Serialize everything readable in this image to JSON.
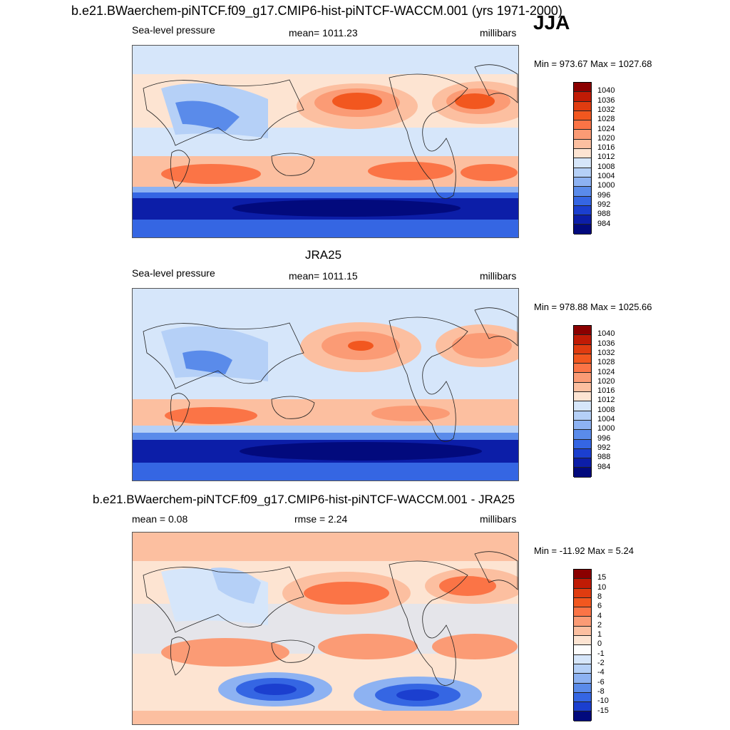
{
  "main_title": "b.e21.BWaerchem-piNTCF.f09_g17.CMIP6-hist-piNTCF-WACCM.001 (yrs 1971-2000)",
  "season": "JJA",
  "panels": [
    {
      "id": "model",
      "left_label": "Sea-level pressure",
      "center_label": "mean= 1011.23",
      "right_label": "millibars",
      "minmax": "Min = 973.67 Max = 1027.68"
    },
    {
      "id": "obs",
      "title": "JRA25",
      "left_label": "Sea-level pressure",
      "center_label": "mean= 1011.15",
      "right_label": "millibars",
      "minmax": "Min = 978.88 Max = 1025.66"
    },
    {
      "id": "diff",
      "title": "b.e21.BWaerchem-piNTCF.f09_g17.CMIP6-hist-piNTCF-WACCM.001 - JRA25",
      "left_label": "mean =   0.08",
      "center_label": "rmse =   2.24",
      "right_label": "millibars",
      "minmax": "Min = -11.92 Max =   5.24"
    }
  ],
  "colorbar_abs": {
    "labels": [
      "1040",
      "1036",
      "1032",
      "1028",
      "1024",
      "1020",
      "1016",
      "1012",
      "1008",
      "1004",
      "1000",
      "996",
      "992",
      "988",
      "984"
    ],
    "colors": [
      "#8b0000",
      "#c01b05",
      "#e03c10",
      "#f2571f",
      "#fb7446",
      "#fb9b75",
      "#fcbfa0",
      "#fde4d2",
      "#d6e6fa",
      "#b5d0f7",
      "#8db2f2",
      "#5a8bea",
      "#3566e3",
      "#1b3fcf",
      "#0c1ea8",
      "#020a7d"
    ]
  },
  "colorbar_diff": {
    "labels": [
      "15",
      "10",
      "8",
      "6",
      "4",
      "2",
      "1",
      "0",
      "-1",
      "-2",
      "-4",
      "-6",
      "-8",
      "-10",
      "-15"
    ],
    "colors": [
      "#8b0000",
      "#c01b05",
      "#e03c10",
      "#f2571f",
      "#fb7446",
      "#fb9b75",
      "#fcbfa0",
      "#fde4d2",
      "#fdfdfd",
      "#d6e6fa",
      "#b5d0f7",
      "#8db2f2",
      "#5a8bea",
      "#3566e3",
      "#1b3fcf",
      "#020a7d"
    ]
  }
}
